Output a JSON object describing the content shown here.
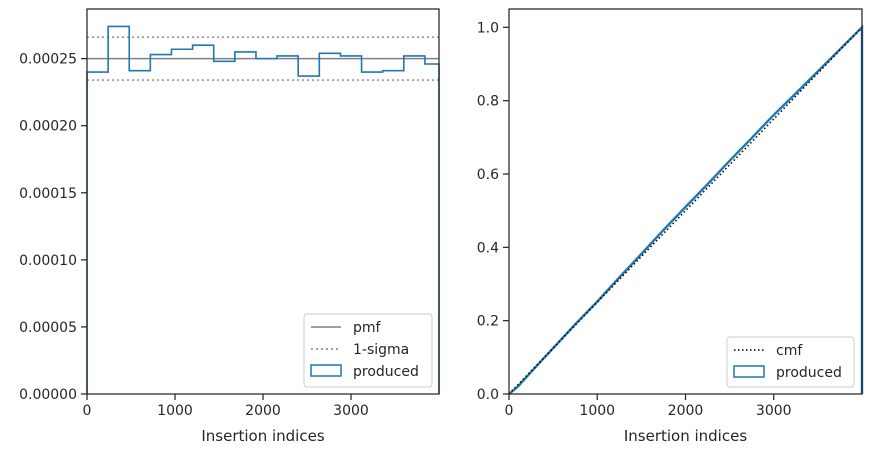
{
  "chart_data": [
    {
      "type": "histogram",
      "xlabel": "Insertion indices",
      "ylabel": "",
      "xlim": [
        0,
        4000
      ],
      "ylim": [
        0,
        0.000287
      ],
      "xticks": [
        0,
        1000,
        2000,
        3000
      ],
      "xtick_labels": [
        "0",
        "1000",
        "2000",
        "3000"
      ],
      "yticks": [
        0,
        5e-05,
        0.0001,
        0.00015,
        0.0002,
        0.00025
      ],
      "ytick_labels": [
        "0.00000",
        "0.00005",
        "0.00010",
        "0.00015",
        "0.00020",
        "0.00025"
      ],
      "grid": false,
      "legend_location": "bottom-right",
      "bin_edges": [
        0,
        240,
        480,
        720,
        960,
        1200,
        1440,
        1680,
        1920,
        2160,
        2400,
        2640,
        2880,
        3120,
        3360,
        3600,
        3840,
        4000
      ],
      "series": [
        {
          "name": "produced",
          "style": "step",
          "color": "#1f77b4",
          "values": [
            0.00024,
            0.000274,
            0.000241,
            0.000253,
            0.000257,
            0.00026,
            0.000248,
            0.000255,
            0.00025,
            0.000252,
            0.000237,
            0.000254,
            0.000252,
            0.00024,
            0.000241,
            0.000252,
            0.000246
          ]
        },
        {
          "name": "pmf",
          "style": "solid",
          "color": "#808080",
          "value": 0.00025
        },
        {
          "name": "1-sigma",
          "style": "dotted",
          "color": "#808080",
          "values": [
            0.000234,
            0.000266
          ]
        }
      ]
    },
    {
      "type": "line",
      "xlabel": "Insertion indices",
      "ylabel": "",
      "xlim": [
        0,
        4000
      ],
      "ylim": [
        0,
        1.05
      ],
      "xticks": [
        0,
        1000,
        2000,
        3000
      ],
      "xtick_labels": [
        "0",
        "1000",
        "2000",
        "3000"
      ],
      "yticks": [
        0,
        0.2,
        0.4,
        0.6,
        0.8,
        1.0
      ],
      "ytick_labels": [
        "0.0",
        "0.2",
        "0.4",
        "0.6",
        "0.8",
        "1.0"
      ],
      "grid": false,
      "legend_location": "bottom-right",
      "series": [
        {
          "name": "cmf",
          "style": "dotted",
          "color": "#000000",
          "x": [
            0,
            4000
          ],
          "y": [
            0,
            1.0
          ]
        },
        {
          "name": "produced",
          "style": "step",
          "color": "#1f77b4",
          "x": [
            0,
            100,
            250,
            500,
            750,
            1000,
            1250,
            1500,
            1750,
            2000,
            2250,
            2500,
            2750,
            3000,
            3250,
            3500,
            3750,
            4000
          ],
          "y": [
            0,
            0.02,
            0.06,
            0.125,
            0.19,
            0.252,
            0.318,
            0.382,
            0.447,
            0.51,
            0.572,
            0.636,
            0.698,
            0.761,
            0.82,
            0.88,
            0.94,
            1.0
          ]
        }
      ]
    }
  ]
}
